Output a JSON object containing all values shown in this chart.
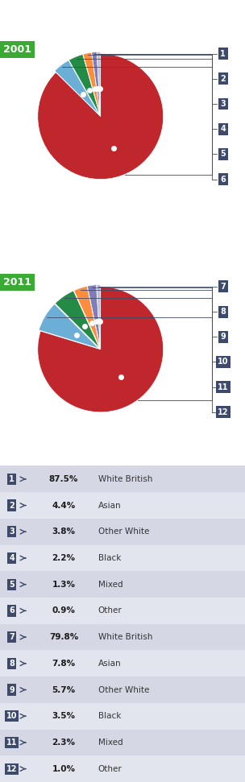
{
  "year1": "2001",
  "year2": "2011",
  "year_label_bg": "#3aaa35",
  "slices1": [
    87.5,
    4.4,
    3.8,
    2.2,
    1.3,
    0.9
  ],
  "slices2": [
    79.8,
    7.8,
    5.7,
    3.5,
    2.3,
    1.0
  ],
  "colors": [
    "#c0272d",
    "#6baed6",
    "#238b45",
    "#fd8d3c",
    "#807dba",
    "#bcbddc"
  ],
  "labels": [
    "White British",
    "Asian",
    "Other White",
    "Black",
    "Mixed",
    "Other"
  ],
  "numbers1": [
    "1",
    "2",
    "3",
    "4",
    "5",
    "6"
  ],
  "numbers2": [
    "7",
    "8",
    "9",
    "10",
    "11",
    "12"
  ],
  "pcts1": [
    "87.5%",
    "4.4%",
    "3.8%",
    "2.2%",
    "1.3%",
    "0.9%"
  ],
  "pcts2": [
    "79.8%",
    "7.8%",
    "5.7%",
    "3.5%",
    "2.3%",
    "1.0%"
  ],
  "num_bg": "#3d4a6b",
  "connector_color": "#3d4a6b",
  "startangle": 90,
  "bg_color": "#ffffff",
  "table_row_colors": [
    "#d5d8e4",
    "#e2e4ee"
  ]
}
